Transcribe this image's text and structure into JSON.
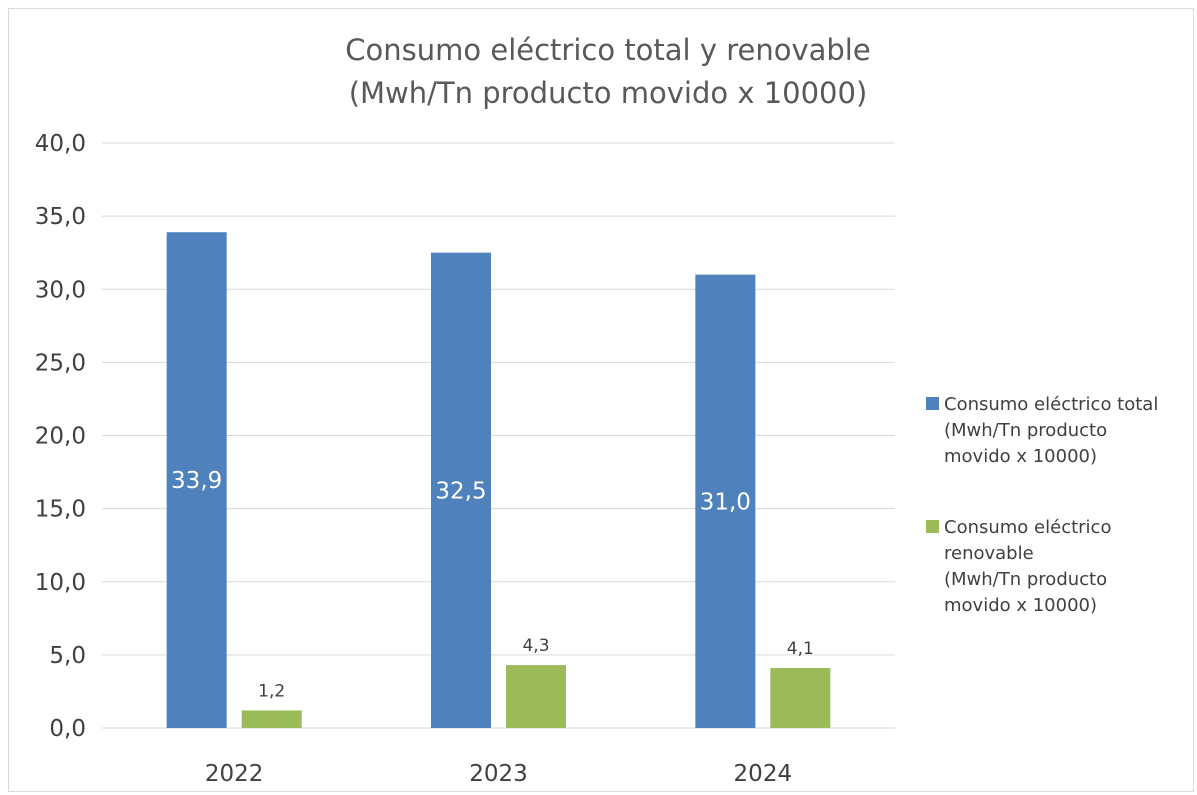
{
  "chart_data": {
    "type": "bar",
    "title_lines": [
      "Consumo eléctrico total y renovable",
      "(Mwh/Tn producto movido x 10000)"
    ],
    "categories": [
      "2022",
      "2023",
      "2024"
    ],
    "series": [
      {
        "name_lines": [
          "Consumo eléctrico total",
          "(Mwh/Tn producto",
          "movido x 10000)"
        ],
        "values": [
          33.9,
          32.5,
          31.0
        ],
        "labels": [
          "33,9",
          "32,5",
          "31,0"
        ],
        "color": "#4f81bd",
        "label_position": "inside-center"
      },
      {
        "name_lines": [
          "Consumo eléctrico",
          "renovable",
          "(Mwh/Tn producto",
          "movido x 10000)"
        ],
        "values": [
          1.2,
          4.3,
          4.1
        ],
        "labels": [
          "1,2",
          "4,3",
          "4,1"
        ],
        "color": "#9bbb59",
        "label_position": "outside-end"
      }
    ],
    "yticks": [
      "0,0",
      "5,0",
      "10,0",
      "15,0",
      "20,0",
      "25,0",
      "30,0",
      "35,0",
      "40,0"
    ],
    "ylim": [
      0,
      40
    ],
    "ystep": 5,
    "grid": true,
    "legend_position": "right"
  }
}
